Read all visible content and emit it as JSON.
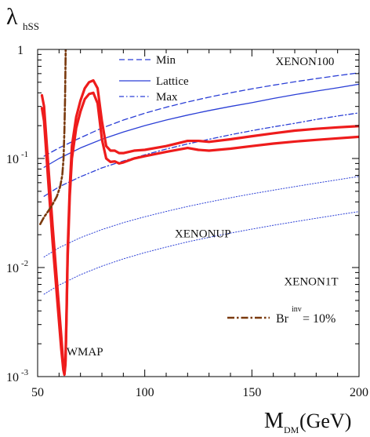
{
  "chart_data": {
    "type": "line",
    "ylabel_main": "λ",
    "ylabel_sub": "hSS",
    "xlabel_main": "M",
    "xlabel_sub": "DM",
    "xlabel_unit": "(GeV)",
    "xlim": [
      50,
      200
    ],
    "ylim": [
      0.001,
      1
    ],
    "yscale": "log",
    "xticks": [
      {
        "v": 50,
        "label": "50"
      },
      {
        "v": 100,
        "label": "100"
      },
      {
        "v": 150,
        "label": "150"
      },
      {
        "v": 200,
        "label": "200"
      }
    ],
    "yticks": [
      {
        "v": 0.001,
        "base": "10",
        "exp": "-3"
      },
      {
        "v": 0.01,
        "base": "10",
        "exp": "-2"
      },
      {
        "v": 0.1,
        "base": "10",
        "exp": "-1"
      },
      {
        "v": 1,
        "base": "1",
        "exp": ""
      }
    ],
    "legend": {
      "placement": "top-left",
      "items": [
        {
          "label": "Min",
          "style": "dashed",
          "color": "#2b3fd6"
        },
        {
          "label": "Lattice",
          "style": "solid",
          "color": "#2b3fd6"
        },
        {
          "label": "Max",
          "style": "dashdot",
          "color": "#2b3fd6"
        }
      ]
    },
    "annotations": [
      {
        "text": "XENON100",
        "x": 161,
        "y": 0.78
      },
      {
        "text": "XENONUP",
        "x": 114,
        "y": 0.0205
      },
      {
        "text": "XENON1T",
        "x": 165,
        "y": 0.0075
      },
      {
        "text": "WMAP",
        "x": 63.5,
        "y": 0.0017
      }
    ],
    "br_legend": {
      "text": "= 10%",
      "base": "Br",
      "sup": "inv",
      "color": "#7a3a0e"
    },
    "series": [
      {
        "group": "xenon100",
        "style": "dashed",
        "color": "#2b3fd6",
        "width": 1.3,
        "x": [
          53,
          60,
          70,
          80,
          90,
          100,
          110,
          120,
          130,
          140,
          150,
          160,
          170,
          180,
          190,
          200
        ],
        "y": [
          0.105,
          0.125,
          0.155,
          0.19,
          0.225,
          0.26,
          0.295,
          0.33,
          0.365,
          0.4,
          0.435,
          0.47,
          0.505,
          0.54,
          0.575,
          0.61
        ]
      },
      {
        "group": "xenon100",
        "style": "solid",
        "color": "#2b3fd6",
        "width": 1.3,
        "x": [
          53,
          60,
          70,
          80,
          90,
          100,
          110,
          120,
          130,
          140,
          150,
          160,
          170,
          180,
          190,
          200
        ],
        "y": [
          0.083,
          0.1,
          0.125,
          0.15,
          0.175,
          0.2,
          0.225,
          0.25,
          0.275,
          0.3,
          0.325,
          0.355,
          0.385,
          0.415,
          0.445,
          0.48
        ]
      },
      {
        "group": "xenon100",
        "style": "dashdot",
        "color": "#2b3fd6",
        "width": 1.3,
        "x": [
          53,
          60,
          70,
          80,
          90,
          100,
          110,
          120,
          130,
          140,
          150,
          160,
          170,
          180,
          190,
          200
        ],
        "y": [
          0.045,
          0.055,
          0.068,
          0.082,
          0.095,
          0.108,
          0.122,
          0.136,
          0.15,
          0.165,
          0.18,
          0.195,
          0.21,
          0.228,
          0.245,
          0.262
        ]
      },
      {
        "group": "xenonup",
        "style": "dotted",
        "color": "#2b3fd6",
        "width": 1.0,
        "x": [
          53,
          60,
          70,
          80,
          90,
          100,
          110,
          120,
          130,
          140,
          150,
          160,
          170,
          180,
          190,
          200
        ],
        "y": [
          0.0125,
          0.0152,
          0.0188,
          0.0223,
          0.0258,
          0.0292,
          0.0327,
          0.0363,
          0.0399,
          0.0436,
          0.0474,
          0.0512,
          0.0552,
          0.0594,
          0.0638,
          0.0685
        ]
      },
      {
        "group": "xenon1t",
        "style": "dotted",
        "color": "#2b3fd6",
        "width": 1.0,
        "x": [
          53,
          60,
          70,
          80,
          90,
          100,
          110,
          120,
          130,
          140,
          150,
          160,
          170,
          180,
          190,
          200
        ],
        "y": [
          0.0057,
          0.0069,
          0.0086,
          0.0103,
          0.012,
          0.0137,
          0.0154,
          0.0172,
          0.0189,
          0.0207,
          0.0225,
          0.0244,
          0.0263,
          0.0283,
          0.0304,
          0.0326
        ]
      },
      {
        "group": "wmap",
        "style": "solid",
        "color": "#ee1c1c",
        "width": 3.2,
        "x": [
          52,
          53,
          55,
          57,
          59,
          61,
          62,
          62.5,
          63,
          63.5,
          64,
          65,
          66,
          68,
          70,
          72,
          74,
          76,
          78,
          80,
          82,
          84,
          86,
          88,
          90,
          95,
          100,
          110,
          120,
          125,
          130,
          140,
          150,
          160,
          170,
          180,
          190,
          200
        ],
        "y": [
          0.38,
          0.3,
          0.085,
          0.024,
          0.0075,
          0.0024,
          0.0013,
          0.00105,
          0.0014,
          0.004,
          0.014,
          0.055,
          0.13,
          0.24,
          0.34,
          0.44,
          0.5,
          0.52,
          0.44,
          0.22,
          0.13,
          0.118,
          0.118,
          0.112,
          0.112,
          0.118,
          0.12,
          0.13,
          0.145,
          0.145,
          0.142,
          0.15,
          0.16,
          0.17,
          0.18,
          0.187,
          0.193,
          0.198
        ]
      },
      {
        "group": "wmap",
        "style": "solid",
        "color": "#ee1c1c",
        "width": 3.2,
        "x": [
          52,
          53,
          55,
          57,
          59,
          61,
          62,
          62.5,
          63,
          63.5,
          64,
          65,
          66,
          68,
          70,
          72,
          74,
          76,
          78,
          80,
          82,
          84,
          86,
          88,
          90,
          95,
          100,
          110,
          120,
          125,
          130,
          140,
          150,
          160,
          170,
          180,
          190,
          200
        ],
        "y": [
          0.29,
          0.22,
          0.06,
          0.017,
          0.0055,
          0.0018,
          0.00115,
          0.00104,
          0.0013,
          0.0035,
          0.012,
          0.045,
          0.1,
          0.19,
          0.27,
          0.35,
          0.39,
          0.4,
          0.32,
          0.15,
          0.1,
          0.093,
          0.094,
          0.09,
          0.092,
          0.1,
          0.105,
          0.115,
          0.125,
          0.12,
          0.118,
          0.123,
          0.13,
          0.137,
          0.143,
          0.148,
          0.153,
          0.158
        ]
      },
      {
        "group": "br_inv",
        "style": "dashdot",
        "color": "#7a3a0e",
        "width": 2.6,
        "x": [
          51.2,
          53,
          55,
          57,
          59,
          60.5,
          61.5,
          62.1,
          62.5,
          62.8,
          63,
          63.1
        ],
        "y": [
          0.025,
          0.029,
          0.033,
          0.038,
          0.045,
          0.055,
          0.07,
          0.1,
          0.18,
          0.35,
          0.7,
          1.0
        ]
      }
    ]
  }
}
